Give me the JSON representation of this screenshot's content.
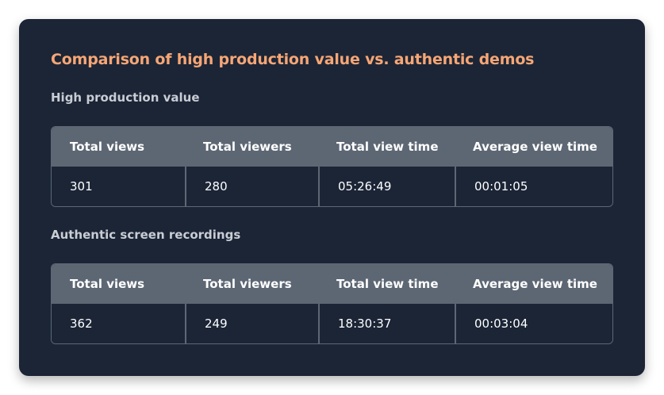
{
  "card": {
    "title": "Comparison of high production value vs. authentic demos"
  },
  "tables": [
    {
      "section_label": "High production value",
      "headers": [
        "Total views",
        "Total viewers",
        "Total view time",
        "Average view time"
      ],
      "values": [
        "301",
        "280",
        "05:26:49",
        "00:01:05"
      ]
    },
    {
      "section_label": "Authentic screen recordings",
      "headers": [
        "Total views",
        "Total viewers",
        "Total view time",
        "Average view time"
      ],
      "values": [
        "362",
        "249",
        "18:30:37",
        "00:03:04"
      ]
    }
  ],
  "colors": {
    "card_background": "#1b2536",
    "title_accent": "#f7a675",
    "header_background": "#5d6774"
  }
}
